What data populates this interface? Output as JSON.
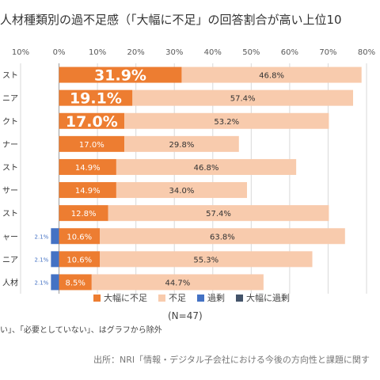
{
  "title": "人材種類別の過不足感（「大幅に不足」の回答割合が高い上位10",
  "chart_data": {
    "type": "bar",
    "orientation": "horizontal",
    "stacked": true,
    "x_ticks": [
      "10%",
      "0%",
      "10%",
      "20%",
      "30%",
      "40%",
      "50%",
      "60%",
      "70%",
      "80%"
    ],
    "x_tick_values": [
      -10,
      0,
      10,
      20,
      30,
      40,
      50,
      60,
      70,
      80
    ],
    "xlim": [
      -10,
      80
    ],
    "grid": true,
    "legend_placement": "bottom",
    "categories": [
      "スト",
      "ニア",
      "クト",
      "ナー",
      "スト",
      "サー",
      "スト",
      "ャー",
      "ニア",
      "人材"
    ],
    "series": [
      {
        "name": "大幅に不足",
        "color": "#ED7D31",
        "values": [
          31.9,
          19.1,
          17.0,
          17.0,
          14.9,
          14.9,
          12.8,
          10.6,
          10.6,
          8.5
        ],
        "labels": [
          "31.9%",
          "19.1%",
          "17.0%",
          "17.0%",
          "14.9%",
          "14.9%",
          "12.8%",
          "10.6%",
          "10.6%",
          "8.5%"
        ]
      },
      {
        "name": "不足",
        "color": "#F8CBAD",
        "values": [
          46.8,
          57.4,
          53.2,
          29.8,
          46.8,
          34.0,
          57.4,
          63.8,
          55.3,
          44.7
        ],
        "labels": [
          "46.8%",
          "57.4%",
          "53.2%",
          "29.8%",
          "46.8%",
          "34.0%",
          "57.4%",
          "63.8%",
          "55.3%",
          "44.7%"
        ]
      },
      {
        "name": "過剰",
        "color": "#4472C4",
        "values": [
          0,
          0,
          0,
          0,
          0,
          0,
          0,
          2.1,
          2.1,
          2.1
        ],
        "labels": [
          "",
          "",
          "",
          "",
          "",
          "",
          "",
          "2.1%",
          "2.1%",
          "2.1%"
        ]
      },
      {
        "name": "大幅に過剰",
        "color": "#44546A",
        "values": [
          0,
          0,
          0,
          0,
          0,
          0,
          0,
          0,
          0,
          0
        ],
        "labels": [
          "",
          "",
          "",
          "",
          "",
          "",
          "",
          "",
          "",
          ""
        ]
      }
    ]
  },
  "n_note": "(N=47)",
  "footnote": "い」、「必要としていない」、はグラフから除外",
  "source": "出所：NRI「情報・デジタル子会社における今後の方向性と課題に関す"
}
